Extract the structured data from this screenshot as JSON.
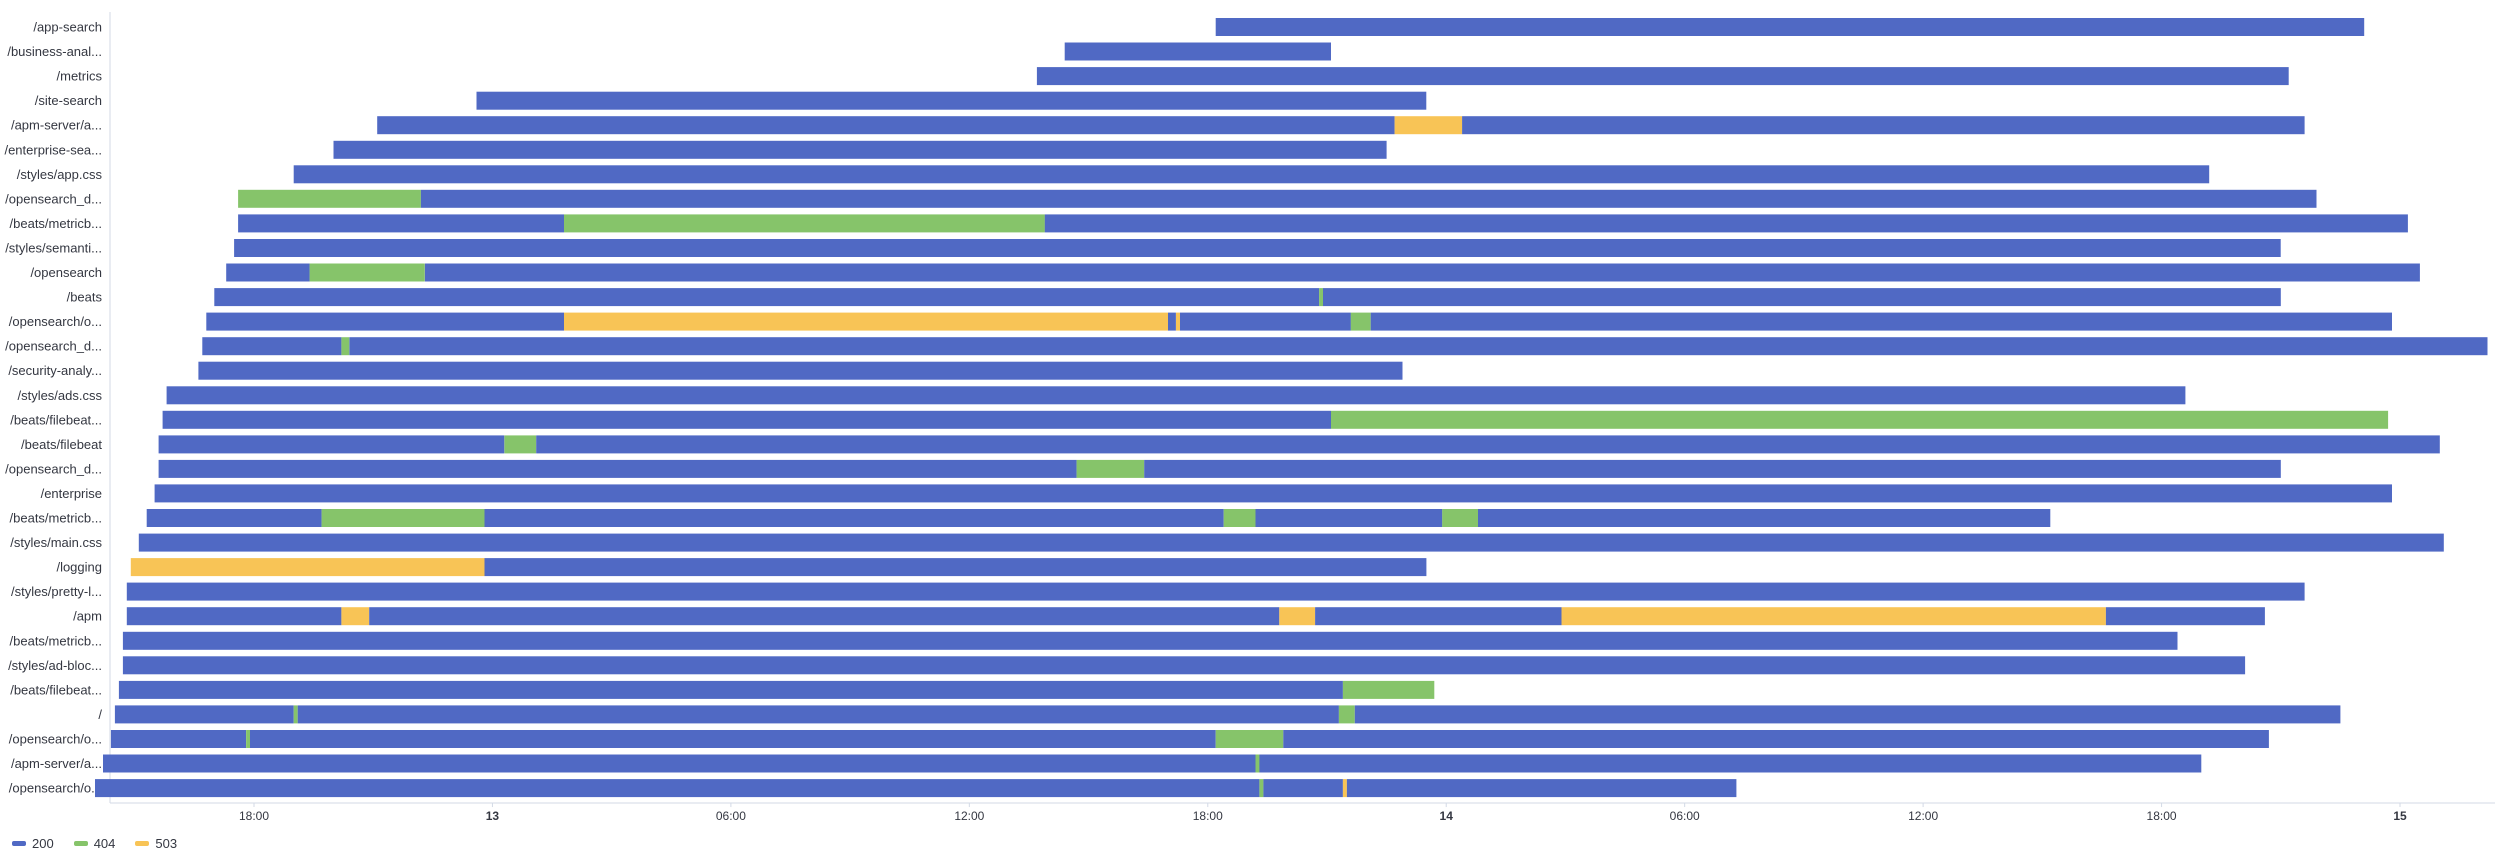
{
  "chart_data": {
    "type": "timeline",
    "x_ticks": [
      {
        "label": "18:00",
        "bold": false,
        "t": 18
      },
      {
        "label": "13",
        "bold": true,
        "t": 24
      },
      {
        "label": "06:00",
        "bold": false,
        "t": 30
      },
      {
        "label": "12:00",
        "bold": false,
        "t": 36
      },
      {
        "label": "18:00",
        "bold": false,
        "t": 42
      },
      {
        "label": "14",
        "bold": true,
        "t": 48
      },
      {
        "label": "06:00",
        "bold": false,
        "t": 54
      },
      {
        "label": "12:00",
        "bold": false,
        "t": 60
      },
      {
        "label": "18:00",
        "bold": false,
        "t": 66
      },
      {
        "label": "15",
        "bold": true,
        "t": 72
      }
    ],
    "legend": [
      {
        "name": "200",
        "color": "#5069c4"
      },
      {
        "name": "404",
        "color": "#86c46a"
      },
      {
        "name": "503",
        "color": "#f8c456"
      }
    ],
    "rows": [
      {
        "label": "/app-search",
        "segments": [
          [
            42.2,
            71.1,
            "200"
          ]
        ]
      },
      {
        "label": "/business-anal...",
        "segments": [
          [
            38.4,
            45.1,
            "200"
          ]
        ]
      },
      {
        "label": "/metrics",
        "segments": [
          [
            37.7,
            69.2,
            "200"
          ]
        ]
      },
      {
        "label": "/site-search",
        "segments": [
          [
            23.6,
            47.5,
            "200"
          ]
        ]
      },
      {
        "label": "/apm-server/a...",
        "segments": [
          [
            21.1,
            46.7,
            "200"
          ],
          [
            46.7,
            48.4,
            "503"
          ],
          [
            48.4,
            69.6,
            "200"
          ]
        ]
      },
      {
        "label": "/enterprise-sea...",
        "segments": [
          [
            20.0,
            46.5,
            "200"
          ]
        ]
      },
      {
        "label": "/styles/app.css",
        "segments": [
          [
            19.0,
            67.2,
            "200"
          ]
        ]
      },
      {
        "label": "/opensearch_d...",
        "segments": [
          [
            17.6,
            22.2,
            "404"
          ],
          [
            22.2,
            69.9,
            "200"
          ]
        ]
      },
      {
        "label": "/beats/metricb...",
        "segments": [
          [
            17.6,
            25.8,
            "200"
          ],
          [
            25.8,
            37.9,
            "404"
          ],
          [
            37.9,
            72.2,
            "200"
          ]
        ]
      },
      {
        "label": "/styles/semanti...",
        "segments": [
          [
            17.5,
            69.0,
            "200"
          ]
        ]
      },
      {
        "label": "/opensearch",
        "segments": [
          [
            17.3,
            19.4,
            "200"
          ],
          [
            19.4,
            22.3,
            "404"
          ],
          [
            22.3,
            72.5,
            "200"
          ]
        ]
      },
      {
        "label": "/beats",
        "segments": [
          [
            17.0,
            44.8,
            "200"
          ],
          [
            44.8,
            44.9,
            "404"
          ],
          [
            44.9,
            69.0,
            "200"
          ]
        ]
      },
      {
        "label": "/opensearch/o...",
        "segments": [
          [
            16.8,
            25.8,
            "200"
          ],
          [
            25.8,
            41.0,
            "503"
          ],
          [
            41.0,
            41.2,
            "200"
          ],
          [
            41.2,
            41.3,
            "503"
          ],
          [
            41.3,
            45.6,
            "200"
          ],
          [
            45.6,
            46.1,
            "404"
          ],
          [
            46.1,
            71.8,
            "200"
          ]
        ]
      },
      {
        "label": "/opensearch_d...",
        "segments": [
          [
            16.7,
            20.2,
            "200"
          ],
          [
            20.2,
            20.4,
            "404"
          ],
          [
            20.4,
            74.2,
            "200"
          ]
        ]
      },
      {
        "label": "/security-analy...",
        "segments": [
          [
            16.6,
            46.9,
            "200"
          ]
        ]
      },
      {
        "label": "/styles/ads.css",
        "segments": [
          [
            15.8,
            66.6,
            "200"
          ]
        ]
      },
      {
        "label": "/beats/filebeat...",
        "segments": [
          [
            15.7,
            45.1,
            "200"
          ],
          [
            45.1,
            71.7,
            "404"
          ]
        ]
      },
      {
        "label": "/beats/filebeat",
        "segments": [
          [
            15.6,
            24.3,
            "200"
          ],
          [
            24.3,
            25.1,
            "404"
          ],
          [
            25.1,
            73.0,
            "200"
          ]
        ]
      },
      {
        "label": "/opensearch_d...",
        "segments": [
          [
            15.6,
            38.7,
            "200"
          ],
          [
            38.7,
            40.4,
            "404"
          ],
          [
            40.4,
            69.0,
            "200"
          ]
        ]
      },
      {
        "label": "/enterprise",
        "segments": [
          [
            15.5,
            71.8,
            "200"
          ]
        ]
      },
      {
        "label": "/beats/metricb...",
        "segments": [
          [
            15.3,
            19.7,
            "200"
          ],
          [
            19.7,
            23.8,
            "404"
          ],
          [
            23.8,
            42.4,
            "200"
          ],
          [
            42.4,
            43.2,
            "404"
          ],
          [
            43.2,
            47.9,
            "200"
          ],
          [
            47.9,
            48.8,
            "404"
          ],
          [
            48.8,
            63.2,
            "200"
          ]
        ]
      },
      {
        "label": "/styles/main.css",
        "segments": [
          [
            15.1,
            73.1,
            "200"
          ]
        ]
      },
      {
        "label": "/logging",
        "segments": [
          [
            14.9,
            23.8,
            "503"
          ],
          [
            23.8,
            47.5,
            "200"
          ]
        ]
      },
      {
        "label": "/styles/pretty-l...",
        "segments": [
          [
            14.8,
            69.6,
            "200"
          ]
        ]
      },
      {
        "label": "/apm",
        "segments": [
          [
            14.8,
            20.2,
            "200"
          ],
          [
            20.2,
            20.9,
            "503"
          ],
          [
            20.9,
            43.8,
            "200"
          ],
          [
            43.8,
            44.7,
            "503"
          ],
          [
            44.7,
            50.9,
            "200"
          ],
          [
            50.9,
            64.6,
            "503"
          ],
          [
            64.6,
            68.6,
            "200"
          ]
        ]
      },
      {
        "label": "/beats/metricb...",
        "segments": [
          [
            14.7,
            66.4,
            "200"
          ]
        ]
      },
      {
        "label": "/styles/ad-bloc...",
        "segments": [
          [
            14.7,
            68.1,
            "200"
          ]
        ]
      },
      {
        "label": "/beats/filebeat...",
        "segments": [
          [
            14.6,
            45.4,
            "200"
          ],
          [
            45.4,
            47.7,
            "404"
          ]
        ]
      },
      {
        "label": "/",
        "segments": [
          [
            14.5,
            19.0,
            "200"
          ],
          [
            19.0,
            19.1,
            "404"
          ],
          [
            19.1,
            45.3,
            "200"
          ],
          [
            45.3,
            45.7,
            "404"
          ],
          [
            45.7,
            70.5,
            "200"
          ]
        ]
      },
      {
        "label": "/opensearch/o...",
        "segments": [
          [
            14.4,
            17.8,
            "200"
          ],
          [
            17.8,
            17.9,
            "404"
          ],
          [
            17.9,
            42.2,
            "200"
          ],
          [
            42.2,
            43.9,
            "404"
          ],
          [
            43.9,
            68.7,
            "200"
          ]
        ]
      },
      {
        "label": "/apm-server/a...",
        "segments": [
          [
            14.2,
            43.2,
            "200"
          ],
          [
            43.2,
            43.3,
            "404"
          ],
          [
            43.3,
            67.0,
            "200"
          ]
        ]
      },
      {
        "label": "/opensearch/o...",
        "segments": [
          [
            14.0,
            43.3,
            "200"
          ],
          [
            43.3,
            43.4,
            "404"
          ],
          [
            43.4,
            45.4,
            "200"
          ],
          [
            45.4,
            45.5,
            "503"
          ],
          [
            45.5,
            55.3,
            "200"
          ]
        ]
      }
    ]
  }
}
